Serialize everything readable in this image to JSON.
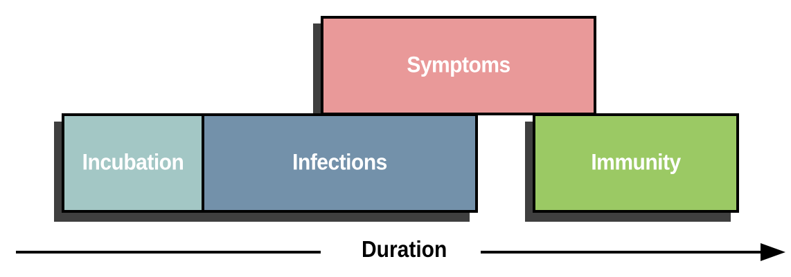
{
  "stages": {
    "symptoms": {
      "label": "Symptoms",
      "color": "#e99999"
    },
    "incubation": {
      "label": "Incubation",
      "color": "#a3c7c5"
    },
    "infections": {
      "label": "Infections",
      "color": "#7391aa"
    },
    "immunity": {
      "label": "Immunity",
      "color": "#9bc964"
    }
  },
  "axis": {
    "label": "Duration"
  }
}
